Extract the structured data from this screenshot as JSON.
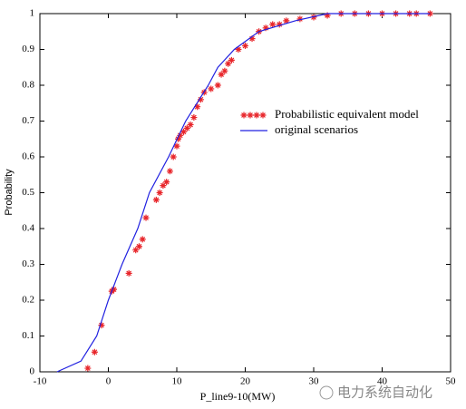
{
  "chart_data": {
    "type": "cdf",
    "x_label": "P_line9-10(MW)",
    "y_label": "Probability",
    "xlim": [
      -10,
      50
    ],
    "xticks": [
      -10,
      0,
      10,
      20,
      30,
      40,
      50
    ],
    "ylim": [
      0,
      1
    ],
    "yticks": [
      0,
      0.1,
      0.2,
      0.3,
      0.4,
      0.5,
      0.6,
      0.7,
      0.8,
      0.9,
      1
    ],
    "grid": false,
    "legend": "center",
    "watermark": "电力系统自动化",
    "series": [
      {
        "name": "Probabilistic equivalent model",
        "color": "#e8262b",
        "style": "markers",
        "x": [
          -3,
          -2,
          -1,
          0.5,
          0.8,
          3,
          4,
          4.5,
          5,
          5.5,
          7,
          7.5,
          8,
          8.5,
          9,
          9.5,
          10,
          10.2,
          10.5,
          11,
          11.5,
          12,
          12.5,
          13,
          13.5,
          14,
          15,
          16,
          16.5,
          17,
          17.5,
          18,
          19,
          20,
          21,
          22,
          23,
          24,
          25,
          26,
          28,
          30,
          32,
          34,
          36,
          38,
          40,
          42,
          44,
          45,
          47
        ],
        "values": [
          0.01,
          0.055,
          0.13,
          0.225,
          0.23,
          0.275,
          0.34,
          0.35,
          0.37,
          0.43,
          0.48,
          0.5,
          0.52,
          0.53,
          0.56,
          0.6,
          0.63,
          0.65,
          0.66,
          0.67,
          0.68,
          0.69,
          0.71,
          0.74,
          0.76,
          0.78,
          0.79,
          0.8,
          0.83,
          0.84,
          0.86,
          0.87,
          0.9,
          0.91,
          0.93,
          0.95,
          0.96,
          0.97,
          0.97,
          0.98,
          0.985,
          0.99,
          0.995,
          1,
          1,
          1,
          1,
          1,
          1,
          1,
          1
        ]
      },
      {
        "name": "original scenarios",
        "color": "#2020e0",
        "style": "line",
        "x": [
          -7.5,
          -4,
          -1.7,
          0,
          2,
          4.3,
          6,
          8.8,
          11.3,
          14.6,
          16,
          18.4,
          22,
          27.3,
          32,
          40,
          47
        ],
        "values": [
          0,
          0.03,
          0.1,
          0.2,
          0.3,
          0.4,
          0.5,
          0.6,
          0.7,
          0.8,
          0.85,
          0.9,
          0.95,
          0.98,
          1,
          1,
          1
        ]
      }
    ]
  }
}
